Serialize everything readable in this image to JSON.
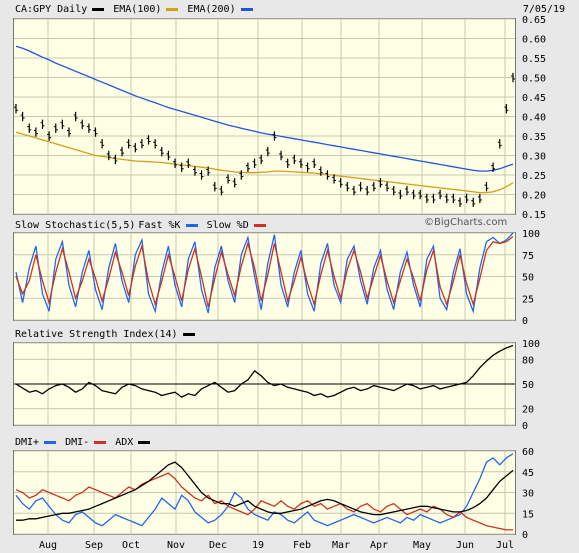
{
  "header": {
    "symbol_label": "CA:GPY Daily",
    "ema100_label": "EMA(100)",
    "ema200_label": "EMA(200)",
    "date": "7/05/19",
    "watermark": "©BigCharts.com"
  },
  "colors": {
    "price": "#000000",
    "ema100": "#d4a017",
    "ema200": "#2255dd",
    "fastK": "#2266ee",
    "slowD": "#cc3322",
    "rsi": "#000000",
    "dmiplus": "#2266ee",
    "dmiminus": "#cc3322",
    "adx": "#000000",
    "panel_bg": "#ffffe5",
    "grid": "#c8c8b0"
  },
  "x_labels": [
    "Aug",
    "Sep",
    "Oct",
    "Nov",
    "Dec",
    "19",
    "Feb",
    "Mar",
    "Apr",
    "May",
    "Jun",
    "Jul"
  ],
  "chart_data": [
    {
      "type": "line",
      "title": "CA:GPY Daily",
      "ylim": [
        0.15,
        0.65
      ],
      "yticks": [
        "0.65",
        "0.60",
        "0.55",
        "0.50",
        "0.45",
        "0.40",
        "0.35",
        "0.30",
        "0.25",
        "0.20",
        "0.15"
      ],
      "series": [
        {
          "name": "CA:GPY Daily",
          "values": [
            0.42,
            0.4,
            0.37,
            0.36,
            0.38,
            0.35,
            0.37,
            0.38,
            0.36,
            0.4,
            0.38,
            0.37,
            0.36,
            0.33,
            0.3,
            0.29,
            0.31,
            0.33,
            0.32,
            0.33,
            0.34,
            0.33,
            0.31,
            0.3,
            0.28,
            0.27,
            0.28,
            0.26,
            0.25,
            0.26,
            0.22,
            0.21,
            0.24,
            0.23,
            0.25,
            0.27,
            0.28,
            0.29,
            0.31,
            0.35,
            0.3,
            0.28,
            0.29,
            0.28,
            0.27,
            0.28,
            0.26,
            0.25,
            0.24,
            0.23,
            0.22,
            0.21,
            0.22,
            0.21,
            0.22,
            0.23,
            0.22,
            0.21,
            0.2,
            0.21,
            0.2,
            0.2,
            0.19,
            0.19,
            0.2,
            0.19,
            0.19,
            0.18,
            0.19,
            0.18,
            0.19,
            0.22,
            0.27,
            0.33,
            0.42,
            0.5
          ]
        },
        {
          "name": "EMA(100)",
          "values": [
            0.36,
            0.355,
            0.35,
            0.345,
            0.34,
            0.335,
            0.33,
            0.325,
            0.32,
            0.315,
            0.31,
            0.305,
            0.3,
            0.298,
            0.295,
            0.292,
            0.29,
            0.288,
            0.286,
            0.285,
            0.284,
            0.283,
            0.282,
            0.28,
            0.278,
            0.276,
            0.274,
            0.272,
            0.27,
            0.268,
            0.265,
            0.262,
            0.26,
            0.258,
            0.257,
            0.256,
            0.256,
            0.257,
            0.258,
            0.26,
            0.26,
            0.259,
            0.258,
            0.257,
            0.256,
            0.255,
            0.253,
            0.251,
            0.249,
            0.247,
            0.245,
            0.243,
            0.241,
            0.239,
            0.237,
            0.235,
            0.233,
            0.231,
            0.229,
            0.227,
            0.225,
            0.223,
            0.221,
            0.219,
            0.217,
            0.215,
            0.213,
            0.211,
            0.209,
            0.207,
            0.205,
            0.205,
            0.207,
            0.212,
            0.22,
            0.23
          ]
        },
        {
          "name": "EMA(200)",
          "values": [
            0.58,
            0.575,
            0.568,
            0.56,
            0.552,
            0.545,
            0.537,
            0.53,
            0.523,
            0.516,
            0.509,
            0.502,
            0.495,
            0.488,
            0.481,
            0.474,
            0.467,
            0.46,
            0.453,
            0.447,
            0.441,
            0.435,
            0.429,
            0.423,
            0.418,
            0.413,
            0.408,
            0.403,
            0.398,
            0.393,
            0.388,
            0.383,
            0.378,
            0.374,
            0.37,
            0.366,
            0.362,
            0.358,
            0.355,
            0.352,
            0.349,
            0.346,
            0.343,
            0.34,
            0.337,
            0.334,
            0.331,
            0.328,
            0.325,
            0.322,
            0.319,
            0.316,
            0.313,
            0.31,
            0.307,
            0.304,
            0.301,
            0.298,
            0.295,
            0.292,
            0.289,
            0.286,
            0.283,
            0.28,
            0.277,
            0.274,
            0.271,
            0.268,
            0.265,
            0.262,
            0.26,
            0.26,
            0.262,
            0.266,
            0.272,
            0.278
          ]
        }
      ]
    },
    {
      "type": "line",
      "title": "Slow Stochastic(5,5)",
      "ylim": [
        0,
        100
      ],
      "yticks": [
        "100",
        "75",
        "50",
        "25",
        "0"
      ],
      "series": [
        {
          "name": "Fast %K",
          "values": [
            55,
            20,
            60,
            85,
            30,
            10,
            70,
            90,
            40,
            15,
            55,
            80,
            35,
            12,
            60,
            88,
            45,
            20,
            75,
            92,
            30,
            10,
            55,
            85,
            40,
            15,
            70,
            90,
            35,
            8,
            60,
            85,
            45,
            20,
            75,
            95,
            50,
            12,
            65,
            98,
            40,
            15,
            55,
            80,
            30,
            10,
            65,
            88,
            40,
            20,
            70,
            85,
            45,
            18,
            60,
            80,
            35,
            12,
            55,
            78,
            40,
            15,
            70,
            85,
            25,
            12,
            55,
            82,
            30,
            10,
            60,
            90,
            95,
            88,
            92,
            100
          ]
        },
        {
          "name": "Slow %D",
          "values": [
            50,
            30,
            45,
            75,
            45,
            20,
            55,
            82,
            55,
            25,
            45,
            70,
            48,
            22,
            48,
            78,
            55,
            28,
            62,
            85,
            45,
            18,
            45,
            75,
            50,
            22,
            58,
            82,
            50,
            15,
            48,
            78,
            52,
            28,
            62,
            88,
            60,
            22,
            52,
            88,
            55,
            22,
            45,
            72,
            42,
            18,
            52,
            80,
            50,
            25,
            58,
            80,
            55,
            25,
            50,
            74,
            45,
            20,
            45,
            70,
            48,
            22,
            58,
            80,
            38,
            18,
            45,
            75,
            42,
            18,
            48,
            80,
            90,
            88,
            90,
            96
          ]
        }
      ]
    },
    {
      "type": "line",
      "title": "Relative Strength Index(14)",
      "ylim": [
        0,
        100
      ],
      "yticks": [
        "100",
        "80",
        "50",
        "20",
        "0"
      ],
      "series": [
        {
          "name": "Relative Strength Index(14)",
          "values": [
            50,
            45,
            40,
            42,
            38,
            44,
            48,
            50,
            46,
            40,
            44,
            52,
            48,
            42,
            40,
            38,
            46,
            50,
            48,
            44,
            42,
            40,
            36,
            38,
            40,
            34,
            38,
            36,
            44,
            48,
            52,
            46,
            40,
            42,
            50,
            55,
            66,
            60,
            52,
            48,
            50,
            46,
            44,
            42,
            40,
            36,
            38,
            34,
            36,
            40,
            44,
            46,
            42,
            44,
            48,
            46,
            44,
            42,
            46,
            50,
            48,
            44,
            46,
            48,
            44,
            46,
            48,
            50,
            52,
            60,
            70,
            78,
            85,
            90,
            94,
            97
          ]
        }
      ]
    },
    {
      "type": "line",
      "title": "DMI+ / DMI- / ADX",
      "ylim": [
        0,
        60
      ],
      "yticks": [
        "60",
        "45",
        "30",
        "15",
        "0"
      ],
      "series": [
        {
          "name": "DMI+",
          "values": [
            28,
            22,
            18,
            24,
            26,
            20,
            14,
            10,
            8,
            14,
            16,
            12,
            8,
            6,
            10,
            14,
            12,
            10,
            8,
            6,
            12,
            18,
            26,
            22,
            18,
            28,
            24,
            16,
            12,
            8,
            10,
            14,
            20,
            30,
            26,
            18,
            14,
            12,
            10,
            16,
            14,
            10,
            8,
            12,
            16,
            10,
            8,
            6,
            8,
            10,
            12,
            14,
            12,
            10,
            8,
            10,
            12,
            10,
            8,
            12,
            10,
            14,
            12,
            10,
            8,
            10,
            12,
            14,
            20,
            30,
            40,
            52,
            55,
            50,
            55,
            58
          ]
        },
        {
          "name": "DMI-",
          "values": [
            32,
            30,
            26,
            28,
            32,
            30,
            28,
            26,
            24,
            28,
            30,
            34,
            32,
            30,
            28,
            26,
            30,
            34,
            32,
            36,
            38,
            40,
            42,
            44,
            40,
            34,
            30,
            26,
            24,
            28,
            22,
            24,
            20,
            18,
            16,
            14,
            18,
            24,
            22,
            20,
            24,
            20,
            18,
            22,
            24,
            20,
            22,
            18,
            20,
            22,
            18,
            16,
            20,
            22,
            18,
            16,
            20,
            22,
            18,
            14,
            16,
            18,
            16,
            20,
            18,
            14,
            12,
            16,
            12,
            10,
            8,
            6,
            5,
            4,
            3,
            3
          ]
        },
        {
          "name": "ADX",
          "values": [
            10,
            10,
            11,
            11,
            12,
            13,
            14,
            15,
            15,
            16,
            17,
            18,
            20,
            22,
            24,
            26,
            28,
            30,
            32,
            35,
            38,
            42,
            46,
            50,
            52,
            48,
            42,
            36,
            30,
            26,
            24,
            22,
            22,
            20,
            22,
            24,
            20,
            18,
            16,
            15,
            15,
            16,
            17,
            18,
            20,
            22,
            24,
            25,
            24,
            22,
            20,
            18,
            16,
            15,
            14,
            14,
            15,
            16,
            17,
            18,
            19,
            20,
            20,
            19,
            18,
            17,
            16,
            16,
            17,
            19,
            22,
            26,
            32,
            38,
            42,
            46
          ]
        }
      ]
    }
  ]
}
